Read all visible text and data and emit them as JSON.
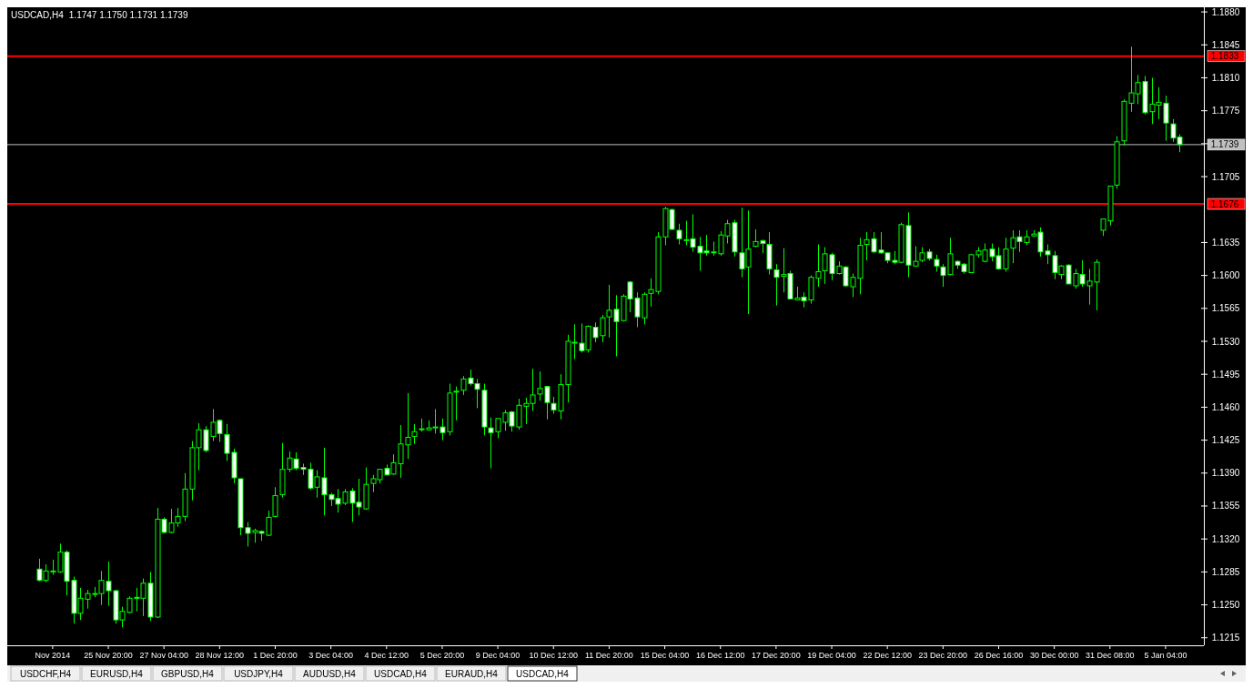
{
  "chart_data": {
    "type": "candlestick",
    "title": "USDCAD,H4",
    "subtitle": "1.1747 1.1750 1.1731 1.1739",
    "categories": [
      null,
      null,
      "Nov 2014",
      null,
      null,
      null,
      null,
      null,
      null,
      null,
      "25 Nov 20:00",
      null,
      null,
      null,
      null,
      null,
      null,
      null,
      "27 Nov 04:00",
      null,
      null,
      null,
      null,
      null,
      null,
      null,
      "28 Nov 12:00",
      null,
      null,
      null,
      null,
      null,
      null,
      null,
      "1 Dec 20:00",
      null,
      null,
      null,
      null,
      null,
      null,
      null,
      "3 Dec 04:00",
      null,
      null,
      null,
      null,
      null,
      null,
      null,
      "4 Dec 12:00",
      null,
      null,
      null,
      null,
      null,
      null,
      null,
      "5 Dec 20:00",
      null,
      null,
      null,
      null,
      null,
      null,
      null,
      "9 Dec 04:00",
      null,
      null,
      null,
      null,
      null,
      null,
      null,
      "10 Dec 12:00",
      null,
      null,
      null,
      null,
      null,
      null,
      null,
      "11 Dec 20:00",
      null,
      null,
      null,
      null,
      null,
      null,
      null,
      "15 Dec 04:00",
      null,
      null,
      null,
      null,
      null,
      null,
      null,
      "16 Dec 12:00",
      null,
      null,
      null,
      null,
      null,
      null,
      null,
      "17 Dec 20:00",
      null,
      null,
      null,
      null,
      null,
      null,
      null,
      "19 Dec 04:00",
      null,
      null,
      null,
      null,
      null,
      null,
      null,
      "22 Dec 12:00",
      null,
      null,
      null,
      null,
      null,
      null,
      null,
      "23 Dec 20:00",
      null,
      null,
      null,
      null,
      null,
      null,
      null,
      "26 Dec 16:00",
      null,
      null,
      null,
      null,
      null,
      null,
      null,
      "30 Dec 00:00",
      null,
      null,
      null,
      null,
      null,
      null,
      null,
      "31 Dec 08:00",
      null,
      null,
      null,
      null,
      null,
      null,
      null,
      "5 Jan 04:00",
      null,
      null
    ],
    "color": "#00ff00",
    "ohlc": [
      [
        1.1288,
        1.1299,
        1.1275,
        1.1276
      ],
      [
        1.1276,
        1.1293,
        1.1274,
        1.1286
      ],
      [
        1.1285,
        1.1298,
        1.1282,
        1.1286
      ],
      [
        1.1285,
        1.1315,
        1.1284,
        1.1306
      ],
      [
        1.1306,
        1.1308,
        1.126,
        1.1275
      ],
      [
        1.1276,
        1.128,
        1.123,
        1.1241
      ],
      [
        1.1241,
        1.1268,
        1.1234,
        1.1257
      ],
      [
        1.1256,
        1.1266,
        1.1246,
        1.1262
      ],
      [
        1.1262,
        1.1269,
        1.1258,
        1.1262
      ],
      [
        1.1262,
        1.1286,
        1.125,
        1.1276
      ],
      [
        1.1275,
        1.1296,
        1.1249,
        1.1265
      ],
      [
        1.1265,
        1.1266,
        1.123,
        1.1234
      ],
      [
        1.1234,
        1.1248,
        1.1226,
        1.1243
      ],
      [
        1.1242,
        1.1259,
        1.1241,
        1.1257
      ],
      [
        1.1258,
        1.1268,
        1.1243,
        1.1257
      ],
      [
        1.1257,
        1.1278,
        1.1238,
        1.1273
      ],
      [
        1.1273,
        1.1285,
        1.1233,
        1.1237
      ],
      [
        1.1237,
        1.1353,
        1.1236,
        1.1341
      ],
      [
        1.1341,
        1.1343,
        1.1326,
        1.1327
      ],
      [
        1.1327,
        1.1352,
        1.1326,
        1.1337
      ],
      [
        1.1337,
        1.1353,
        1.1333,
        1.1344
      ],
      [
        1.1344,
        1.139,
        1.1339,
        1.1373
      ],
      [
        1.1373,
        1.1424,
        1.1361,
        1.1417
      ],
      [
        1.1417,
        1.1443,
        1.1393,
        1.1436
      ],
      [
        1.1436,
        1.144,
        1.1412,
        1.1414
      ],
      [
        1.1429,
        1.1458,
        1.1424,
        1.1444
      ],
      [
        1.1446,
        1.1447,
        1.1423,
        1.1432
      ],
      [
        1.1431,
        1.1442,
        1.1403,
        1.1411
      ],
      [
        1.1412,
        1.1416,
        1.1379,
        1.1385
      ],
      [
        1.1384,
        1.1384,
        1.1324,
        1.1332
      ],
      [
        1.1332,
        1.1338,
        1.1312,
        1.1326
      ],
      [
        1.1327,
        1.1331,
        1.1316,
        1.1329
      ],
      [
        1.1328,
        1.1329,
        1.1318,
        1.1326
      ],
      [
        1.1324,
        1.135,
        1.1323,
        1.1343
      ],
      [
        1.1344,
        1.1375,
        1.1343,
        1.1366
      ],
      [
        1.1367,
        1.1422,
        1.1364,
        1.1394
      ],
      [
        1.1394,
        1.1413,
        1.1391,
        1.1406
      ],
      [
        1.1405,
        1.1412,
        1.1393,
        1.1395
      ],
      [
        1.1396,
        1.14,
        1.1388,
        1.1394
      ],
      [
        1.1394,
        1.1401,
        1.1372,
        1.1374
      ],
      [
        1.1375,
        1.1393,
        1.1364,
        1.1386
      ],
      [
        1.1385,
        1.1417,
        1.1345,
        1.1367
      ],
      [
        1.1367,
        1.1369,
        1.1355,
        1.1362
      ],
      [
        1.1363,
        1.1373,
        1.1348,
        1.1357
      ],
      [
        1.1358,
        1.1373,
        1.1356,
        1.137
      ],
      [
        1.1371,
        1.1374,
        1.1338,
        1.1358
      ],
      [
        1.1359,
        1.1384,
        1.1345,
        1.1354
      ],
      [
        1.1352,
        1.1396,
        1.1351,
        1.1378
      ],
      [
        1.1379,
        1.1388,
        1.137,
        1.1384
      ],
      [
        1.1383,
        1.1394,
        1.1379,
        1.1394
      ],
      [
        1.1395,
        1.1399,
        1.1388,
        1.1388
      ],
      [
        1.1389,
        1.141,
        1.1388,
        1.1401
      ],
      [
        1.14,
        1.1441,
        1.1385,
        1.1421
      ],
      [
        1.142,
        1.1475,
        1.1405,
        1.1428
      ],
      [
        1.1429,
        1.1442,
        1.1421,
        1.1434
      ],
      [
        1.1437,
        1.1448,
        1.1434,
        1.1437
      ],
      [
        1.1436,
        1.1446,
        1.1435,
        1.1438
      ],
      [
        1.1438,
        1.1458,
        1.1432,
        1.1439
      ],
      [
        1.1439,
        1.1448,
        1.1425,
        1.1433
      ],
      [
        1.1434,
        1.1485,
        1.143,
        1.1475
      ],
      [
        1.1476,
        1.1482,
        1.1446,
        1.1477
      ],
      [
        1.1478,
        1.1493,
        1.1473,
        1.149
      ],
      [
        1.1491,
        1.15,
        1.1483,
        1.1485
      ],
      [
        1.1485,
        1.149,
        1.1459,
        1.1479
      ],
      [
        1.1478,
        1.1485,
        1.143,
        1.1439
      ],
      [
        1.1438,
        1.1449,
        1.1395,
        1.1433
      ],
      [
        1.1434,
        1.1448,
        1.1427,
        1.1448
      ],
      [
        1.1444,
        1.1457,
        1.1435,
        1.1454
      ],
      [
        1.1455,
        1.1456,
        1.1434,
        1.144
      ],
      [
        1.1439,
        1.1469,
        1.1436,
        1.1462
      ],
      [
        1.1461,
        1.147,
        1.1442,
        1.1464
      ],
      [
        1.1464,
        1.1501,
        1.1456,
        1.1473
      ],
      [
        1.1474,
        1.1498,
        1.1467,
        1.148
      ],
      [
        1.1482,
        1.1482,
        1.1447,
        1.1465
      ],
      [
        1.1464,
        1.1471,
        1.1453,
        1.1457
      ],
      [
        1.1456,
        1.1495,
        1.1447,
        1.1484
      ],
      [
        1.1484,
        1.1537,
        1.1465,
        1.153
      ],
      [
        1.1529,
        1.1548,
        1.1511,
        1.1529
      ],
      [
        1.1528,
        1.1549,
        1.1518,
        1.152
      ],
      [
        1.1521,
        1.1547,
        1.1518,
        1.1546
      ],
      [
        1.1545,
        1.155,
        1.1529,
        1.1534
      ],
      [
        1.1536,
        1.1558,
        1.1529,
        1.1555
      ],
      [
        1.1556,
        1.159,
        1.1534,
        1.1563
      ],
      [
        1.1564,
        1.1579,
        1.1514,
        1.1551
      ],
      [
        1.1552,
        1.158,
        1.1551,
        1.1578
      ],
      [
        1.1593,
        1.1594,
        1.1561,
        1.1575
      ],
      [
        1.1576,
        1.1582,
        1.1545,
        1.1556
      ],
      [
        1.1555,
        1.1582,
        1.1548,
        1.158
      ],
      [
        1.1581,
        1.1597,
        1.1567,
        1.1585
      ],
      [
        1.1583,
        1.1646,
        1.158,
        1.1641
      ],
      [
        1.1641,
        1.1673,
        1.1632,
        1.1671
      ],
      [
        1.167,
        1.1671,
        1.1648,
        1.1649
      ],
      [
        1.1648,
        1.1655,
        1.1633,
        1.1639
      ],
      [
        1.1638,
        1.1658,
        1.1632,
        1.1638
      ],
      [
        1.1639,
        1.1665,
        1.1625,
        1.163
      ],
      [
        1.1631,
        1.1641,
        1.1605,
        1.1624
      ],
      [
        1.1626,
        1.1643,
        1.1621,
        1.1624
      ],
      [
        1.1625,
        1.1636,
        1.1621,
        1.1625
      ],
      [
        1.1623,
        1.1647,
        1.1621,
        1.1643
      ],
      [
        1.1642,
        1.1659,
        1.1634,
        1.1655
      ],
      [
        1.1656,
        1.1659,
        1.162,
        1.1625
      ],
      [
        1.1624,
        1.1672,
        1.1598,
        1.1607
      ],
      [
        1.1609,
        1.1669,
        1.1559,
        1.1628
      ],
      [
        1.1631,
        1.1649,
        1.163,
        1.1636
      ],
      [
        1.1637,
        1.1638,
        1.1624,
        1.1634
      ],
      [
        1.1633,
        1.1646,
        1.1601,
        1.1607
      ],
      [
        1.1606,
        1.1612,
        1.1568,
        1.1598
      ],
      [
        1.1599,
        1.1629,
        1.1582,
        1.1601
      ],
      [
        1.1602,
        1.1605,
        1.1575,
        1.1575
      ],
      [
        1.1574,
        1.1588,
        1.1574,
        1.1576
      ],
      [
        1.1577,
        1.1582,
        1.1566,
        1.1573
      ],
      [
        1.1574,
        1.16,
        1.157,
        1.1598
      ],
      [
        1.1597,
        1.1633,
        1.1588,
        1.1604
      ],
      [
        1.1605,
        1.163,
        1.1591,
        1.1623
      ],
      [
        1.1622,
        1.1624,
        1.1595,
        1.1602
      ],
      [
        1.1602,
        1.1615,
        1.1601,
        1.161
      ],
      [
        1.1609,
        1.161,
        1.1588,
        1.1589
      ],
      [
        1.1588,
        1.1602,
        1.1577,
        1.1598
      ],
      [
        1.1597,
        1.164,
        1.158,
        1.1632
      ],
      [
        1.1633,
        1.1646,
        1.1616,
        1.1638
      ],
      [
        1.1639,
        1.1646,
        1.1624,
        1.1625
      ],
      [
        1.1627,
        1.1646,
        1.1623,
        1.1624
      ],
      [
        1.1624,
        1.1624,
        1.1613,
        1.1616
      ],
      [
        1.1616,
        1.1626,
        1.1612,
        1.1614
      ],
      [
        1.1614,
        1.1656,
        1.1613,
        1.1654
      ],
      [
        1.1653,
        1.1667,
        1.1598,
        1.1611
      ],
      [
        1.161,
        1.1631,
        1.161,
        1.1615
      ],
      [
        1.1616,
        1.163,
        1.1614,
        1.1624
      ],
      [
        1.1625,
        1.1628,
        1.1616,
        1.1618
      ],
      [
        1.1617,
        1.1622,
        1.1604,
        1.161
      ],
      [
        1.1609,
        1.1612,
        1.1588,
        1.16
      ],
      [
        1.1601,
        1.164,
        1.16,
        1.1623
      ],
      [
        1.1615,
        1.1616,
        1.1607,
        1.1611
      ],
      [
        1.1612,
        1.1613,
        1.1602,
        1.1604
      ],
      [
        1.1603,
        1.1623,
        1.1603,
        1.1622
      ],
      [
        1.1622,
        1.163,
        1.1619,
        1.1626
      ],
      [
        1.1615,
        1.1634,
        1.1614,
        1.1627
      ],
      [
        1.1628,
        1.1634,
        1.1615,
        1.162
      ],
      [
        1.1621,
        1.163,
        1.1606,
        1.1607
      ],
      [
        1.1607,
        1.164,
        1.1604,
        1.1628
      ],
      [
        1.1629,
        1.1648,
        1.1613,
        1.164
      ],
      [
        1.1641,
        1.1648,
        1.1625,
        1.1636
      ],
      [
        1.1635,
        1.1648,
        1.1632,
        1.1641
      ],
      [
        1.1642,
        1.1648,
        1.1641,
        1.1644
      ],
      [
        1.1646,
        1.1651,
        1.162,
        1.1625
      ],
      [
        1.1626,
        1.1633,
        1.1612,
        1.1622
      ],
      [
        1.1621,
        1.1626,
        1.1596,
        1.1603
      ],
      [
        1.1601,
        1.1611,
        1.1596,
        1.161
      ],
      [
        1.1611,
        1.1612,
        1.1591,
        1.1591
      ],
      [
        1.1589,
        1.1607,
        1.1586,
        1.1602
      ],
      [
        1.1601,
        1.1616,
        1.1588,
        1.1591
      ],
      [
        1.1589,
        1.1607,
        1.1569,
        1.1594
      ],
      [
        1.1593,
        1.1617,
        1.1563,
        1.1614
      ],
      [
        1.1648,
        1.166,
        1.1642,
        1.166
      ],
      [
        1.1658,
        1.1695,
        1.1653,
        1.1695
      ],
      [
        1.1696,
        1.1748,
        1.1692,
        1.1742
      ],
      [
        1.1743,
        1.1787,
        1.1738,
        1.1785
      ],
      [
        1.1783,
        1.1843,
        1.1774,
        1.1794
      ],
      [
        1.1793,
        1.1813,
        1.1782,
        1.1805
      ],
      [
        1.1806,
        1.1812,
        1.1771,
        1.1773
      ],
      [
        1.1774,
        1.181,
        1.1761,
        1.1782
      ],
      [
        1.1781,
        1.18,
        1.1766,
        1.1784
      ],
      [
        1.1783,
        1.1791,
        1.1743,
        1.1762
      ],
      [
        1.1761,
        1.1766,
        1.1742,
        1.1746
      ],
      [
        1.1747,
        1.175,
        1.1731,
        1.1739
      ]
    ],
    "ylim": [
      1.1207,
      1.1883
    ],
    "yticks": [
      {
        "value": 1.1215,
        "label": "1.1215"
      },
      {
        "value": 1.125,
        "label": "1.1250"
      },
      {
        "value": 1.1285,
        "label": "1.1285"
      },
      {
        "value": 1.132,
        "label": "1.1320"
      },
      {
        "value": 1.1355,
        "label": "1.1355"
      },
      {
        "value": 1.139,
        "label": "1.1390"
      },
      {
        "value": 1.1425,
        "label": "1.1425"
      },
      {
        "value": 1.146,
        "label": "1.1460"
      },
      {
        "value": 1.1495,
        "label": "1.1495"
      },
      {
        "value": 1.153,
        "label": "1.1530"
      },
      {
        "value": 1.1565,
        "label": "1.1565"
      },
      {
        "value": 1.16,
        "label": "1.1600"
      },
      {
        "value": 1.1635,
        "label": "1.1635"
      },
      {
        "value": 1.1705,
        "label": "1.1705"
      },
      {
        "value": 1.174,
        "label": null
      },
      {
        "value": 1.1775,
        "label": "1.1775"
      },
      {
        "value": 1.181,
        "label": "1.1810"
      },
      {
        "value": 1.1845,
        "label": "1.1845"
      },
      {
        "value": 1.188,
        "label": "1.1880"
      }
    ],
    "ref_lines": [
      {
        "axis": "y",
        "value": 1.1833,
        "label": "1.1833",
        "color": "#ff0000"
      },
      {
        "axis": "y",
        "value": 1.1676,
        "label": "1.1676",
        "color": "#ff0000"
      },
      {
        "axis": "y",
        "value": 1.1739,
        "label": "1.1739",
        "color": "#c0c0c0"
      }
    ],
    "annotations": [
      "USDCHF,H4",
      "EURUSD,H4",
      "GBPUSD,H4",
      "USDJPY,H4",
      "AUDUSD,H4",
      "USDCAD,H4",
      "EURAUD,H4",
      "USDCAD,H4"
    ]
  }
}
